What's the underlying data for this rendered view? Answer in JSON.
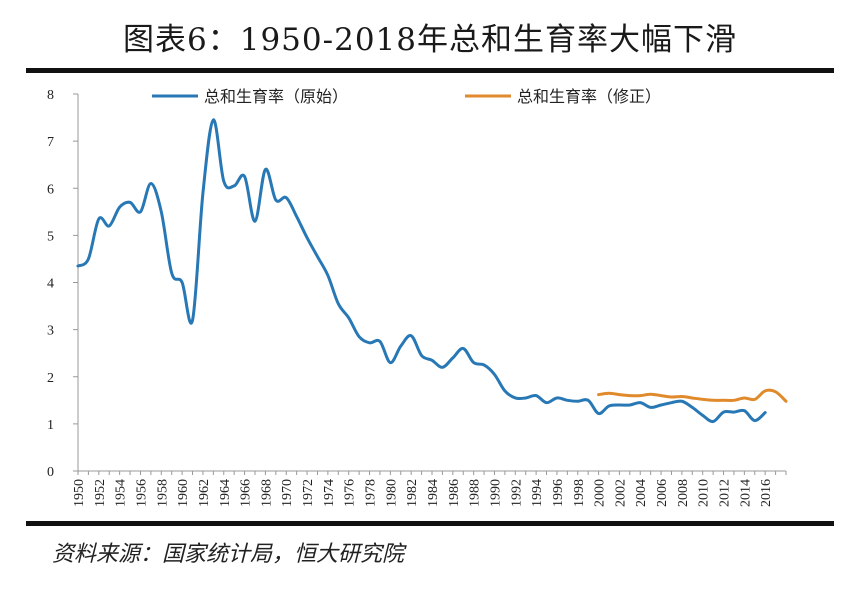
{
  "header": {
    "title": "图表6：1950-2018年总和生育率大幅下滑"
  },
  "footer": {
    "source": "资料来源：国家统计局，恒大研究院"
  },
  "chart_data": {
    "type": "line",
    "title": "图表6：1950-2018年总和生育率大幅下滑",
    "xlabel": "",
    "ylabel": "",
    "ylim": [
      0,
      8
    ],
    "xlim": [
      1950,
      2018
    ],
    "yticks": [
      0,
      1,
      2,
      3,
      4,
      5,
      6,
      7,
      8
    ],
    "xticks": [
      1950,
      1952,
      1954,
      1956,
      1958,
      1960,
      1962,
      1964,
      1966,
      1968,
      1970,
      1972,
      1974,
      1976,
      1978,
      1980,
      1982,
      1984,
      1986,
      1988,
      1990,
      1992,
      1994,
      1996,
      1998,
      2000,
      2002,
      2004,
      2006,
      2008,
      2010,
      2012,
      2014,
      2016
    ],
    "legend_position": "top",
    "series": [
      {
        "name": "总和生育率（原始）",
        "color": "#2878B5",
        "x": [
          1950,
          1951,
          1952,
          1953,
          1954,
          1955,
          1956,
          1957,
          1958,
          1959,
          1960,
          1961,
          1962,
          1963,
          1964,
          1965,
          1966,
          1967,
          1968,
          1969,
          1970,
          1971,
          1972,
          1973,
          1974,
          1975,
          1976,
          1977,
          1978,
          1979,
          1980,
          1981,
          1982,
          1983,
          1984,
          1985,
          1986,
          1987,
          1988,
          1989,
          1990,
          1991,
          1992,
          1993,
          1994,
          1995,
          1996,
          1997,
          1998,
          1999,
          2000,
          2001,
          2002,
          2003,
          2004,
          2005,
          2006,
          2007,
          2008,
          2009,
          2010,
          2011,
          2012,
          2013,
          2014,
          2015,
          2016
        ],
        "values": [
          4.35,
          4.5,
          5.35,
          5.2,
          5.6,
          5.7,
          5.5,
          6.1,
          5.5,
          4.2,
          4.0,
          3.2,
          5.9,
          7.45,
          6.15,
          6.05,
          6.25,
          5.3,
          6.4,
          5.75,
          5.8,
          5.4,
          4.95,
          4.55,
          4.15,
          3.55,
          3.25,
          2.85,
          2.72,
          2.75,
          2.3,
          2.65,
          2.87,
          2.45,
          2.35,
          2.2,
          2.4,
          2.6,
          2.3,
          2.25,
          2.05,
          1.7,
          1.55,
          1.55,
          1.6,
          1.45,
          1.55,
          1.5,
          1.48,
          1.5,
          1.22,
          1.38,
          1.4,
          1.4,
          1.45,
          1.35,
          1.4,
          1.45,
          1.48,
          1.35,
          1.18,
          1.05,
          1.25,
          1.25,
          1.28,
          1.07,
          1.24
        ]
      },
      {
        "name": "总和生育率（修正）",
        "color": "#E08A2C",
        "x": [
          2000,
          2001,
          2002,
          2003,
          2004,
          2005,
          2006,
          2007,
          2008,
          2009,
          2010,
          2011,
          2012,
          2013,
          2014,
          2015,
          2016,
          2017,
          2018
        ],
        "values": [
          1.62,
          1.65,
          1.62,
          1.6,
          1.6,
          1.63,
          1.6,
          1.57,
          1.58,
          1.55,
          1.52,
          1.5,
          1.5,
          1.5,
          1.55,
          1.52,
          1.7,
          1.68,
          1.48
        ]
      }
    ]
  }
}
